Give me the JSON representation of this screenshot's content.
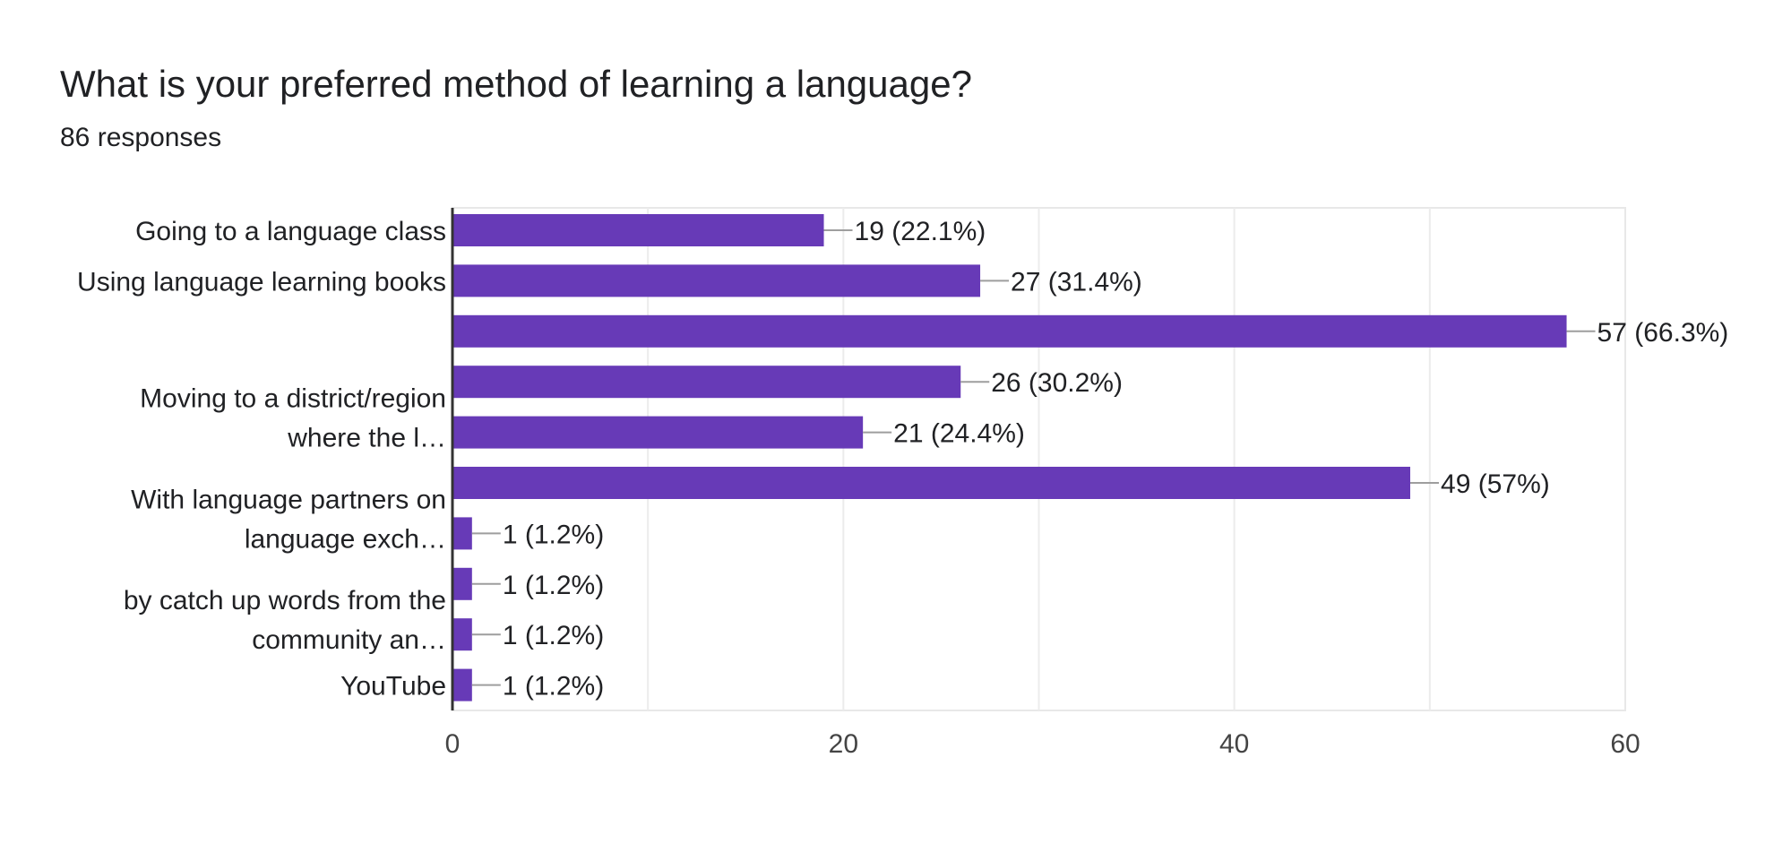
{
  "header": {
    "title": "What is your preferred method of learning a language?",
    "subtitle": "86 responses"
  },
  "chart_data": {
    "type": "bar",
    "orientation": "horizontal",
    "title": "What is your preferred method of learning a language?",
    "subtitle": "86 responses",
    "bar_color": "#673AB7",
    "grid": true,
    "xlim": [
      0,
      60
    ],
    "xticks": [
      0,
      20,
      40,
      60
    ],
    "categories": [
      "Going to a language class",
      "Using language learning books",
      "",
      "Moving to a district/region where the l…",
      "",
      "With language partners on language exch…",
      "",
      "by catch up words from the community an…",
      "",
      "YouTube"
    ],
    "values": [
      19,
      27,
      57,
      26,
      21,
      49,
      1,
      1,
      1,
      1
    ],
    "data_labels": [
      "19 (22.1%)",
      "27 (31.4%)",
      "57 (66.3%)",
      "26 (30.2%)",
      "21 (24.4%)",
      "49 (57%)",
      "1 (1.2%)",
      "1 (1.2%)",
      "1 (1.2%)",
      "1 (1.2%)"
    ]
  }
}
